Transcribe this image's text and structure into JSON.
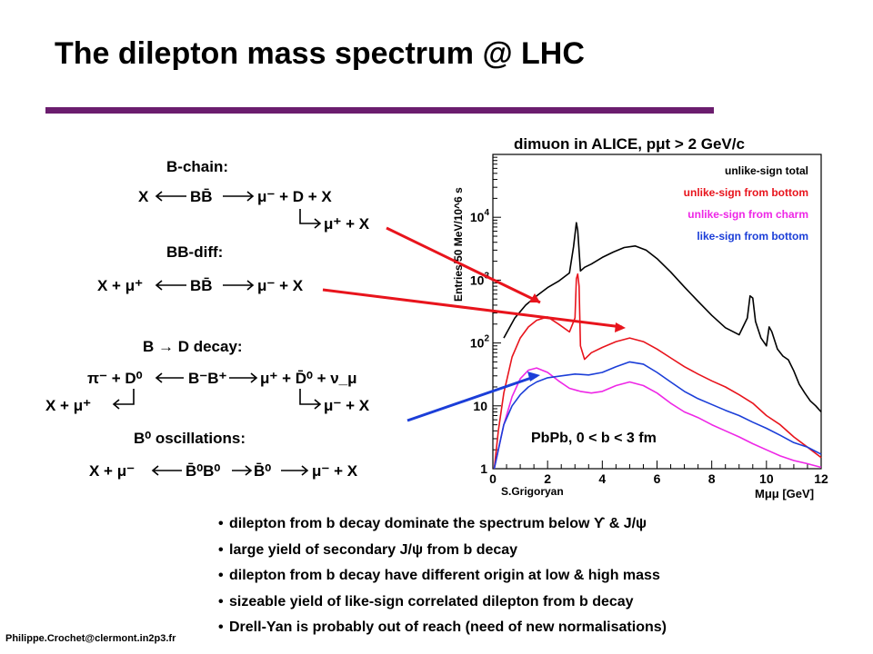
{
  "slide": {
    "title": "The dilepton mass spectrum @ LHC",
    "footer": "Philippe.Crochet@clermont.in2p3.fr",
    "accent_color": "#6b1d6e"
  },
  "diagrams": {
    "b_chain": {
      "heading": "B-chain:",
      "left": "X",
      "middle": "BB̄",
      "right": "μ⁻ + D + X",
      "branch": "μ⁺ + X"
    },
    "bb_diff": {
      "heading": "BB-diff:",
      "left": "X + μ⁺",
      "middle": "BB̄",
      "right": "μ⁻ + X"
    },
    "b_d_decay": {
      "heading": "B → D decay:",
      "left": "π⁻ + D⁰",
      "middle": "B⁻B⁺",
      "right": "μ⁺ + D̄⁰ + ν_μ",
      "branch_left": "X + μ⁺",
      "branch_right": "μ⁻ + X"
    },
    "b0_osc": {
      "heading": "B⁰ oscillations:",
      "left": "X + μ⁻",
      "middle": "B̄⁰B⁰",
      "middle2": "B̄⁰",
      "right": "μ⁻ + X"
    }
  },
  "chart_data": {
    "type": "line",
    "title": "dimuon in ALICE, pμt > 2 GeV/c",
    "xlabel": "Mμμ [GeV]",
    "ylabel": "Entries/50 MeV/10^6 s",
    "xlim": [
      0,
      12
    ],
    "ylim": [
      1,
      100000
    ],
    "yscale": "log",
    "x_ticks": [
      "0",
      "2",
      "4",
      "6",
      "8",
      "10",
      "12"
    ],
    "y_ticks": [
      {
        "base": "1",
        "exp": ""
      },
      {
        "base": "10",
        "exp": ""
      },
      {
        "base": "10",
        "exp": "2"
      },
      {
        "base": "10",
        "exp": "3"
      },
      {
        "base": "10",
        "exp": "4"
      }
    ],
    "annotation": "PbPb, 0 < b < 3 fm",
    "credit": "S.Grigoryan",
    "series": [
      {
        "name": "unlike-sign  total",
        "color": "#000000",
        "x": [
          0.4,
          0.8,
          1.2,
          1.6,
          2.0,
          2.4,
          2.8,
          2.95,
          3.05,
          3.1,
          3.2,
          3.35,
          3.6,
          4.0,
          4.4,
          4.8,
          5.2,
          5.6,
          6.0,
          6.5,
          7.0,
          7.5,
          8.0,
          8.5,
          9.0,
          9.3,
          9.4,
          9.5,
          9.6,
          9.8,
          10.0,
          10.1,
          10.2,
          10.4,
          10.6,
          10.8,
          11.0,
          11.2,
          11.4,
          11.6,
          11.8,
          12.0
        ],
        "y": [
          120,
          250,
          400,
          560,
          760,
          960,
          1300,
          3400,
          8200,
          6200,
          1400,
          1600,
          1800,
          2300,
          2800,
          3300,
          3500,
          3000,
          2200,
          1350,
          780,
          460,
          275,
          175,
          135,
          250,
          560,
          520,
          220,
          120,
          90,
          180,
          150,
          80,
          62,
          54,
          36,
          22,
          16,
          12,
          10,
          8
        ]
      },
      {
        "name": "unlike-sign  from bottom",
        "color": "#e8141c",
        "x": [
          0.05,
          0.2,
          0.4,
          0.7,
          1.0,
          1.3,
          1.6,
          2.0,
          2.4,
          2.8,
          3.0,
          3.05,
          3.1,
          3.15,
          3.2,
          3.35,
          3.6,
          4.0,
          4.5,
          5.0,
          5.5,
          6.0,
          6.5,
          7.0,
          7.5,
          8.0,
          8.5,
          9.0,
          9.5,
          10.0,
          10.5,
          11.0,
          11.5,
          12.0
        ],
        "y": [
          1,
          4,
          16,
          60,
          120,
          180,
          230,
          260,
          200,
          150,
          250,
          1050,
          1250,
          800,
          90,
          55,
          70,
          85,
          105,
          120,
          105,
          80,
          58,
          42,
          32,
          25,
          20,
          15,
          11,
          7,
          5,
          3.2,
          2.2,
          1.5
        ]
      },
      {
        "name": "unlike-sign  from charm",
        "color": "#ee27e6",
        "x": [
          0.05,
          0.2,
          0.4,
          0.7,
          1.0,
          1.3,
          1.6,
          2.0,
          2.4,
          2.8,
          3.2,
          3.6,
          4.0,
          4.5,
          5.0,
          5.5,
          6.0,
          6.5,
          7.0,
          7.5,
          8.0,
          8.5,
          9.0,
          9.5,
          10.0,
          10.5,
          11.0,
          11.5,
          12.0
        ],
        "y": [
          1,
          2,
          5,
          14,
          27,
          37,
          40,
          34,
          25,
          19,
          17,
          16,
          17,
          21,
          24,
          21,
          16,
          11,
          8,
          6.5,
          5,
          4,
          3.2,
          2.5,
          2,
          1.6,
          1.35,
          1.2,
          1.05
        ]
      },
      {
        "name": "like-sign  from bottom",
        "color": "#1b3ed8",
        "x": [
          0.05,
          0.2,
          0.4,
          0.7,
          1.0,
          1.3,
          1.6,
          2.0,
          2.5,
          3.0,
          3.5,
          4.0,
          4.5,
          5.0,
          5.5,
          6.0,
          6.5,
          7.0,
          7.5,
          8.0,
          8.5,
          9.0,
          9.5,
          10.0,
          10.5,
          11.0,
          11.5,
          12.0
        ],
        "y": [
          1,
          2,
          5,
          10,
          15,
          20,
          24,
          28,
          30,
          32,
          31,
          34,
          42,
          50,
          46,
          34,
          24,
          17,
          13,
          10.5,
          8.5,
          7,
          5.5,
          4.4,
          3.4,
          2.6,
          2.2,
          1.7
        ]
      }
    ]
  },
  "bullets": [
    "dilepton from b decay dominate the spectrum below ϒ & J/ψ",
    "large yield of secondary J/ψ from b decay",
    "dilepton from b decay have different origin at low & high mass",
    "sizeable yield of like-sign correlated dilepton from b decay",
    "Drell-Yan is probably out of reach (need of new normalisations)"
  ]
}
